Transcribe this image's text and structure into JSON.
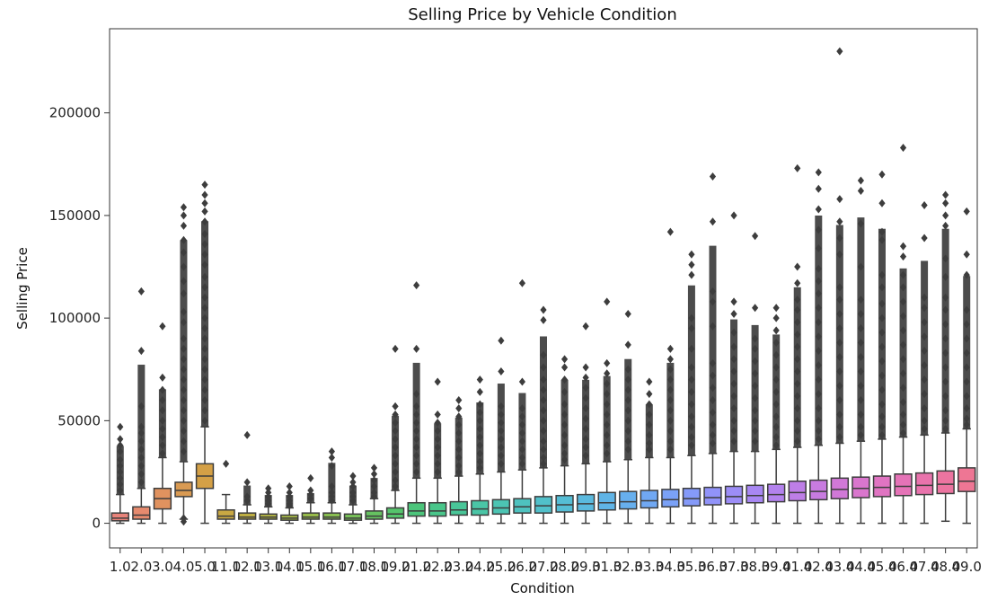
{
  "chart_data": {
    "type": "box",
    "title": "Selling Price by Vehicle Condition",
    "xlabel": "Condition",
    "ylabel": "Selling Price",
    "ylim": [
      -12000,
      241000
    ],
    "yticks": [
      0,
      50000,
      100000,
      150000,
      200000
    ],
    "grid": false,
    "categories": [
      "1.0",
      "2.0",
      "3.0",
      "4.0",
      "5.0",
      "11.0",
      "12.0",
      "13.0",
      "14.0",
      "15.0",
      "16.0",
      "17.0",
      "18.0",
      "19.0",
      "21.0",
      "22.0",
      "23.0",
      "24.0",
      "25.0",
      "26.0",
      "27.0",
      "28.0",
      "29.0",
      "31.0",
      "32.0",
      "33.0",
      "34.0",
      "35.0",
      "36.0",
      "37.0",
      "38.0",
      "39.0",
      "41.0",
      "42.0",
      "43.0",
      "44.0",
      "45.0",
      "46.0",
      "47.0",
      "48.0",
      "49.0"
    ],
    "colors": [
      "#e8837a",
      "#e68a6e",
      "#e0925f",
      "#d99a52",
      "#d4a046",
      "#c9a843",
      "#bdae42",
      "#b1b343",
      "#a4b746",
      "#97bb4a",
      "#88be50",
      "#78c158",
      "#66c261",
      "#55c46c",
      "#4cc57b",
      "#49c68a",
      "#49c698",
      "#4ac5a6",
      "#4cc4b3",
      "#4ec2bf",
      "#51c0ca",
      "#55bdd5",
      "#5ab9de",
      "#60b4e6",
      "#67afed",
      "#70a8f3",
      "#7aa1f7",
      "#859af9",
      "#9193f9",
      "#9c8df7",
      "#a887f3",
      "#b382ee",
      "#be7ee7",
      "#c87be0",
      "#d178d7",
      "#d976cd",
      "#e074c2",
      "#e573b7",
      "#e973ac",
      "#ec74a0",
      "#ee7694"
    ],
    "series": [
      {
        "name": "1.0",
        "whisker_low": 0,
        "q1": 1200,
        "median": 2500,
        "q3": 5000,
        "whisker_high": 14000,
        "outliers": [
          47000,
          41000,
          38000,
          35000,
          31000,
          28000,
          25000,
          22000,
          19000,
          16000
        ]
      },
      {
        "name": "2.0",
        "whisker_low": 0,
        "q1": 2000,
        "median": 4000,
        "q3": 8000,
        "whisker_high": 17000,
        "outliers": [
          113000,
          84000,
          57000,
          47000,
          44000,
          40000,
          36000,
          32000,
          28000,
          24000,
          20000
        ]
      },
      {
        "name": "3.0",
        "whisker_low": 0,
        "q1": 7000,
        "median": 12000,
        "q3": 17000,
        "whisker_high": 32000,
        "outliers": [
          96000,
          71000,
          65000,
          60000,
          55000,
          50000,
          46000,
          42000,
          38000,
          34000
        ]
      },
      {
        "name": "4.0",
        "whisker_low": 2000,
        "q1": 13000,
        "median": 16000,
        "q3": 20000,
        "whisker_high": 30000,
        "outliers": [
          154000,
          150000,
          145000,
          138000,
          132000,
          125000,
          118000,
          112000,
          103000,
          98000,
          90000,
          85000,
          80000,
          75000,
          70000,
          65000,
          60000,
          55000,
          50000,
          45000,
          40000,
          35000,
          2500,
          800
        ]
      },
      {
        "name": "5.0",
        "whisker_low": 0,
        "q1": 17000,
        "median": 23000,
        "q3": 29000,
        "whisker_high": 47000,
        "outliers": [
          165000,
          160000,
          156000,
          152000,
          147000,
          141000,
          136000,
          131000,
          126000,
          120000,
          115000,
          110000,
          105000,
          100000,
          95000,
          90000,
          85000,
          80000,
          75000,
          70000,
          65000,
          60000,
          55000,
          50000
        ]
      },
      {
        "name": "11.0",
        "whisker_low": 0,
        "q1": 2000,
        "median": 3500,
        "q3": 6500,
        "whisker_high": 14000,
        "outliers": [
          29000
        ]
      },
      {
        "name": "12.0",
        "whisker_low": 0,
        "q1": 2000,
        "median": 3000,
        "q3": 5000,
        "whisker_high": 9000,
        "outliers": [
          43000,
          20000,
          13000,
          11000
        ]
      },
      {
        "name": "13.0",
        "whisker_low": 0,
        "q1": 2000,
        "median": 3000,
        "q3": 4500,
        "whisker_high": 8000,
        "outliers": [
          17000,
          15000,
          13000,
          11000,
          9500
        ]
      },
      {
        "name": "14.0",
        "whisker_low": 0,
        "q1": 1500,
        "median": 2500,
        "q3": 4000,
        "whisker_high": 7500,
        "outliers": [
          18000,
          15000,
          13000,
          11000,
          9500,
          8500
        ]
      },
      {
        "name": "15.0",
        "whisker_low": 0,
        "q1": 2000,
        "median": 3000,
        "q3": 5000,
        "whisker_high": 10000,
        "outliers": [
          22000,
          16000,
          14000,
          12000
        ]
      },
      {
        "name": "16.0",
        "whisker_low": 0,
        "q1": 2000,
        "median": 3000,
        "q3": 5000,
        "whisker_high": 10000,
        "outliers": [
          35000,
          32000,
          28000,
          18000,
          15000,
          13000,
          11000
        ]
      },
      {
        "name": "17.0",
        "whisker_low": 0,
        "q1": 1500,
        "median": 2500,
        "q3": 4500,
        "whisker_high": 9000,
        "outliers": [
          23000,
          20000,
          18000,
          15000,
          13000,
          11000
        ]
      },
      {
        "name": "18.0",
        "whisker_low": 0,
        "q1": 2000,
        "median": 3500,
        "q3": 6000,
        "whisker_high": 12000,
        "outliers": [
          27000,
          24000,
          21000,
          18000,
          15000,
          13000
        ]
      },
      {
        "name": "19.0",
        "whisker_low": 0,
        "q1": 2500,
        "median": 4500,
        "q3": 7500,
        "whisker_high": 16000,
        "outliers": [
          85000,
          57000,
          53000,
          49000,
          45000,
          41000,
          37000,
          33000,
          29000,
          25000,
          21000,
          18000
        ]
      },
      {
        "name": "21.0",
        "whisker_low": 0,
        "q1": 3500,
        "median": 6000,
        "q3": 10000,
        "whisker_high": 22000,
        "outliers": [
          116000,
          85000,
          63000,
          57000,
          53000,
          49000,
          45000,
          41000,
          37000,
          33000,
          29000,
          25000
        ]
      },
      {
        "name": "22.0",
        "whisker_low": 0,
        "q1": 3500,
        "median": 6000,
        "q3": 10000,
        "whisker_high": 22000,
        "outliers": [
          69000,
          53000,
          49000,
          45000,
          41000,
          37000,
          33000,
          29000,
          25000
        ]
      },
      {
        "name": "23.0",
        "whisker_low": 0,
        "q1": 4000,
        "median": 6500,
        "q3": 10500,
        "whisker_high": 23000,
        "outliers": [
          60000,
          56000,
          52000,
          48000,
          44000,
          40000,
          36000,
          32000,
          28000,
          25000
        ]
      },
      {
        "name": "24.0",
        "whisker_low": 0,
        "q1": 4000,
        "median": 7000,
        "q3": 11000,
        "whisker_high": 24000,
        "outliers": [
          70000,
          64000,
          58000,
          54000,
          50000,
          46000,
          42000,
          38000,
          34000,
          30000,
          27000
        ]
      },
      {
        "name": "25.0",
        "whisker_low": 0,
        "q1": 4500,
        "median": 7500,
        "q3": 11500,
        "whisker_high": 25000,
        "outliers": [
          89000,
          74000,
          57000,
          53000,
          49000,
          45000,
          41000,
          37000,
          33000,
          29000
        ]
      },
      {
        "name": "26.0",
        "whisker_low": 0,
        "q1": 5000,
        "median": 8000,
        "q3": 12000,
        "whisker_high": 26000,
        "outliers": [
          117000,
          69000,
          56000,
          52000,
          48000,
          44000,
          40000,
          36000,
          32000,
          29000
        ]
      },
      {
        "name": "27.0",
        "whisker_low": 0,
        "q1": 5000,
        "median": 8500,
        "q3": 13000,
        "whisker_high": 27000,
        "outliers": [
          104000,
          99000,
          82000,
          76000,
          70000,
          65000,
          60000,
          55000,
          50000,
          45000,
          40000,
          36000,
          32000,
          29000
        ]
      },
      {
        "name": "28.0",
        "whisker_low": 0,
        "q1": 5500,
        "median": 9000,
        "q3": 13500,
        "whisker_high": 28000,
        "outliers": [
          80000,
          76000,
          70000,
          64000,
          58000,
          53000,
          48000,
          43000,
          38000,
          34000,
          31000
        ]
      },
      {
        "name": "29.0",
        "whisker_low": 0,
        "q1": 6000,
        "median": 9500,
        "q3": 14000,
        "whisker_high": 29000,
        "outliers": [
          96000,
          76000,
          71000,
          66000,
          61000,
          56000,
          51000,
          46000,
          41000,
          37000,
          33000
        ]
      },
      {
        "name": "31.0",
        "whisker_low": 0,
        "q1": 6500,
        "median": 10000,
        "q3": 15000,
        "whisker_high": 30000,
        "outliers": [
          108000,
          78000,
          73000,
          68000,
          63000,
          58000,
          53000,
          48000,
          43000,
          38000,
          34000
        ]
      },
      {
        "name": "32.0",
        "whisker_low": 0,
        "q1": 7000,
        "median": 10500,
        "q3": 15500,
        "whisker_high": 31000,
        "outliers": [
          102000,
          87000,
          75000,
          70000,
          65000,
          60000,
          55000,
          50000,
          45000,
          40000,
          36000
        ]
      },
      {
        "name": "33.0",
        "whisker_low": 0,
        "q1": 7500,
        "median": 11000,
        "q3": 16000,
        "whisker_high": 32000,
        "outliers": [
          69000,
          63000,
          58000,
          53000,
          48000,
          43000,
          39000,
          36000
        ]
      },
      {
        "name": "34.0",
        "whisker_low": 0,
        "q1": 8000,
        "median": 11500,
        "q3": 16500,
        "whisker_high": 32000,
        "outliers": [
          142000,
          85000,
          80000,
          75000,
          70000,
          65000,
          60000,
          55000,
          50000,
          45000,
          40000,
          36000
        ]
      },
      {
        "name": "35.0",
        "whisker_low": 0,
        "q1": 8500,
        "median": 12000,
        "q3": 17000,
        "whisker_high": 33000,
        "outliers": [
          131000,
          126000,
          121000,
          100000,
          95000,
          85000,
          76000,
          70000,
          64000,
          58000,
          52000,
          47000,
          42000,
          38000
        ]
      },
      {
        "name": "36.0",
        "whisker_low": 0,
        "q1": 9000,
        "median": 12500,
        "q3": 17500,
        "whisker_high": 34000,
        "outliers": [
          169000,
          147000,
          113000,
          108000,
          96000,
          78000,
          72000,
          66000,
          60000,
          54000,
          48000,
          43000,
          39000
        ]
      },
      {
        "name": "37.0",
        "whisker_low": 0,
        "q1": 9500,
        "median": 13000,
        "q3": 18000,
        "whisker_high": 35000,
        "outliers": [
          150000,
          108000,
          102000,
          93000,
          86000,
          80000,
          74000,
          68000,
          62000,
          56000,
          50000,
          45000,
          40000
        ]
      },
      {
        "name": "38.0",
        "whisker_low": 0,
        "q1": 10000,
        "median": 13500,
        "q3": 18500,
        "whisker_high": 35000,
        "outliers": [
          140000,
          105000,
          90000,
          85000,
          79000,
          73000,
          67000,
          61000,
          55000,
          50000,
          45000,
          40000
        ]
      },
      {
        "name": "39.0",
        "whisker_low": 0,
        "q1": 10500,
        "median": 14000,
        "q3": 19000,
        "whisker_high": 36000,
        "outliers": [
          105000,
          100000,
          94000,
          88000,
          82000,
          76000,
          70000,
          64000,
          58000,
          52000,
          47000,
          42000,
          38000
        ]
      },
      {
        "name": "41.0",
        "whisker_low": 0,
        "q1": 11000,
        "median": 15000,
        "q3": 20500,
        "whisker_high": 37000,
        "outliers": [
          173000,
          125000,
          117000,
          109000,
          104000,
          98000,
          92000,
          86000,
          80000,
          74000,
          68000,
          62000,
          56000,
          50000,
          45000,
          40000
        ]
      },
      {
        "name": "42.0",
        "whisker_low": 0,
        "q1": 11500,
        "median": 15500,
        "q3": 21000,
        "whisker_high": 38000,
        "outliers": [
          171000,
          163000,
          153000,
          143000,
          134000,
          124000,
          118000,
          112000,
          105000,
          98000,
          91000,
          84000,
          77000,
          70000,
          63000,
          56000,
          50000,
          45000,
          41000
        ]
      },
      {
        "name": "43.0",
        "whisker_low": 0,
        "q1": 12000,
        "median": 16500,
        "q3": 22000,
        "whisker_high": 39000,
        "outliers": [
          230000,
          158000,
          147000,
          139000,
          131000,
          115000,
          109000,
          102000,
          95000,
          88000,
          81000,
          74000,
          67000,
          60000,
          53000,
          47000,
          42000
        ]
      },
      {
        "name": "44.0",
        "whisker_low": 0,
        "q1": 12500,
        "median": 17000,
        "q3": 22500,
        "whisker_high": 40000,
        "outliers": [
          167000,
          162000,
          146000,
          125000,
          109000,
          102000,
          95000,
          88000,
          81000,
          74000,
          67000,
          60000,
          53000,
          47000,
          43000
        ]
      },
      {
        "name": "45.0",
        "whisker_low": 0,
        "q1": 13000,
        "median": 17500,
        "q3": 23000,
        "whisker_high": 41000,
        "outliers": [
          170000,
          156000,
          142000,
          138000,
          121000,
          115000,
          107000,
          100000,
          93000,
          86000,
          79000,
          72000,
          65000,
          58000,
          52000,
          47000,
          43000
        ]
      },
      {
        "name": "46.0",
        "whisker_low": 0,
        "q1": 13500,
        "median": 18000,
        "q3": 24000,
        "whisker_high": 42000,
        "outliers": [
          183000,
          135000,
          130000,
          121000,
          115000,
          108000,
          101000,
          94000,
          87000,
          80000,
          73000,
          66000,
          59000,
          53000,
          48000,
          44000
        ]
      },
      {
        "name": "47.0",
        "whisker_low": 0,
        "q1": 14000,
        "median": 18500,
        "q3": 24500,
        "whisker_high": 43000,
        "outliers": [
          155000,
          139000,
          110000,
          105000,
          98000,
          91000,
          84000,
          77000,
          70000,
          63000,
          56000,
          50000,
          46000
        ]
      },
      {
        "name": "48.0",
        "whisker_low": 1000,
        "q1": 14500,
        "median": 19000,
        "q3": 25500,
        "whisker_high": 44000,
        "outliers": [
          160000,
          156000,
          150000,
          145000,
          129000,
          120000,
          110000,
          104000,
          97000,
          90000,
          83000,
          76000,
          69000,
          62000,
          55000,
          50000,
          46000
        ]
      },
      {
        "name": "49.0",
        "whisker_low": 0,
        "q1": 15500,
        "median": 20500,
        "q3": 27000,
        "whisker_high": 46000,
        "outliers": [
          152000,
          131000,
          121000,
          104000,
          97000,
          90000,
          83000,
          76000,
          69000,
          62000,
          56000,
          51000,
          48000
        ]
      }
    ]
  }
}
